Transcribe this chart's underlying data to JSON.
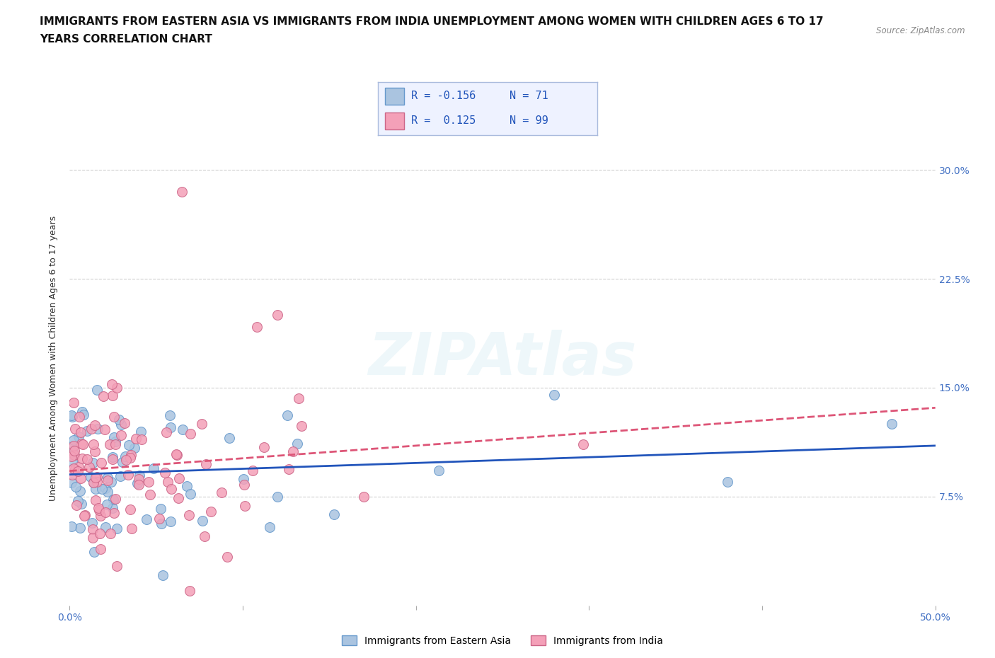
{
  "title_line1": "IMMIGRANTS FROM EASTERN ASIA VS IMMIGRANTS FROM INDIA UNEMPLOYMENT AMONG WOMEN WITH CHILDREN AGES 6 TO 17",
  "title_line2": "YEARS CORRELATION CHART",
  "source_text": "Source: ZipAtlas.com",
  "ylabel": "Unemployment Among Women with Children Ages 6 to 17 years",
  "xlim": [
    0.0,
    0.5
  ],
  "ylim": [
    0.0,
    0.34
  ],
  "ytick_labels_right": [
    "7.5%",
    "15.0%",
    "22.5%",
    "30.0%"
  ],
  "ytick_values_right": [
    0.075,
    0.15,
    0.225,
    0.3
  ],
  "grid_color": "#d0d0d0",
  "background_color": "#ffffff",
  "watermark_text": "ZIPAtlas",
  "series": [
    {
      "name": "Immigrants from Eastern Asia",
      "color": "#aac4e0",
      "edge_color": "#6699cc",
      "R": -0.156,
      "N": 71,
      "trend_color": "#2255bb",
      "trend_style": "-"
    },
    {
      "name": "Immigrants from India",
      "color": "#f4a0b8",
      "edge_color": "#cc6688",
      "R": 0.125,
      "N": 99,
      "trend_color": "#dd5577",
      "trend_style": "--"
    }
  ],
  "legend_box_color": "#eef2ff",
  "legend_border_color": "#aabbdd",
  "title_fontsize": 11,
  "axis_label_fontsize": 9,
  "tick_fontsize": 10,
  "tick_color": "#4472c4",
  "marker_size": 100,
  "seed_ea": 12,
  "seed_india": 77
}
